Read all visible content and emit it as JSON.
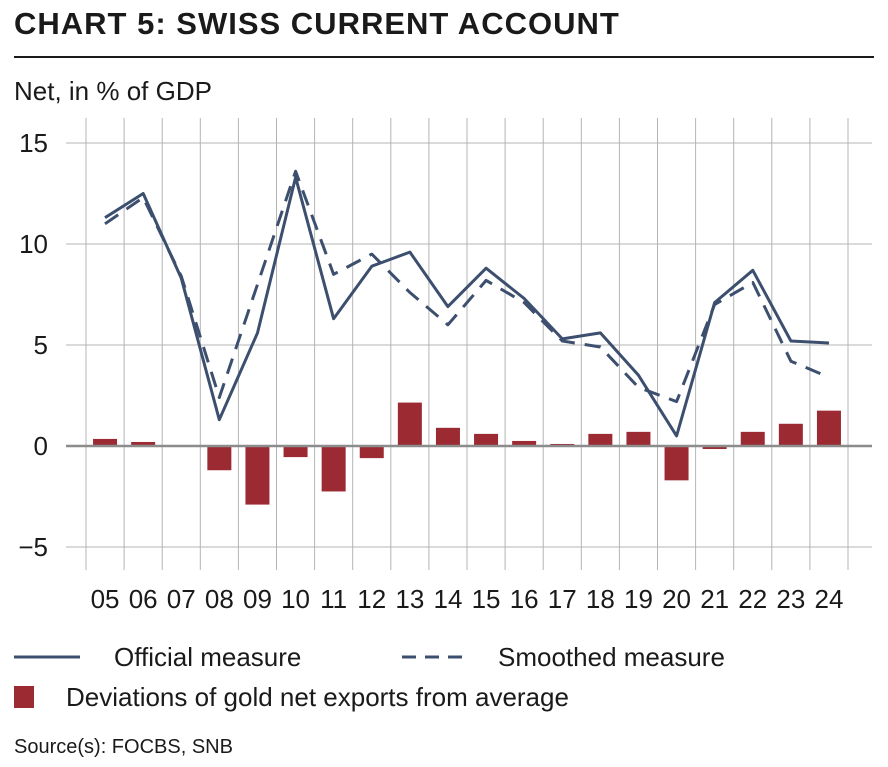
{
  "title": "CHART 5: SWISS CURRENT ACCOUNT",
  "unit_label": "Net, in % of GDP",
  "source": "Source(s): FOCBS, SNB",
  "colors": {
    "line": "#3d4f6e",
    "bar": "#9b2a32",
    "grid": "#b4b4b4",
    "zero": "#8c8c8c"
  },
  "legend": {
    "official": "Official measure",
    "smoothed": "Smoothed measure",
    "gold": "Deviations of gold net exports from average"
  },
  "chart_data": {
    "type": "bar+line",
    "categories": [
      "05",
      "06",
      "07",
      "08",
      "09",
      "10",
      "11",
      "12",
      "13",
      "14",
      "15",
      "16",
      "17",
      "18",
      "19",
      "20",
      "21",
      "22",
      "23",
      "24"
    ],
    "ylim": [
      -6,
      15
    ],
    "yticks": [
      15,
      10,
      5,
      0,
      -5
    ],
    "ytick_labels": [
      "15",
      "10",
      "5",
      "0",
      "−5"
    ],
    "grid": true,
    "legend_position": "bottom",
    "series": [
      {
        "name": "Official measure",
        "kind": "line",
        "style": "solid",
        "values": [
          11.3,
          12.5,
          8.3,
          1.3,
          5.6,
          13.3,
          6.3,
          8.9,
          9.6,
          6.9,
          8.8,
          7.3,
          5.3,
          5.6,
          3.5,
          0.5,
          7.1,
          8.7,
          5.2,
          5.1
        ]
      },
      {
        "name": "Smoothed measure",
        "kind": "line",
        "style": "dashed",
        "values": [
          11.0,
          12.3,
          8.4,
          2.4,
          8.0,
          13.6,
          8.5,
          9.5,
          7.6,
          6.0,
          8.2,
          7.1,
          5.2,
          4.9,
          2.9,
          2.2,
          7.0,
          8.1,
          4.2,
          3.4
        ]
      },
      {
        "name": "Deviations of gold net exports from average",
        "kind": "bar",
        "values": [
          0.35,
          0.2,
          0.0,
          -1.2,
          -2.9,
          -0.55,
          -2.25,
          -0.6,
          2.15,
          0.9,
          0.6,
          0.25,
          0.1,
          0.6,
          0.7,
          -1.7,
          -0.15,
          0.7,
          1.1,
          1.75
        ]
      }
    ]
  }
}
